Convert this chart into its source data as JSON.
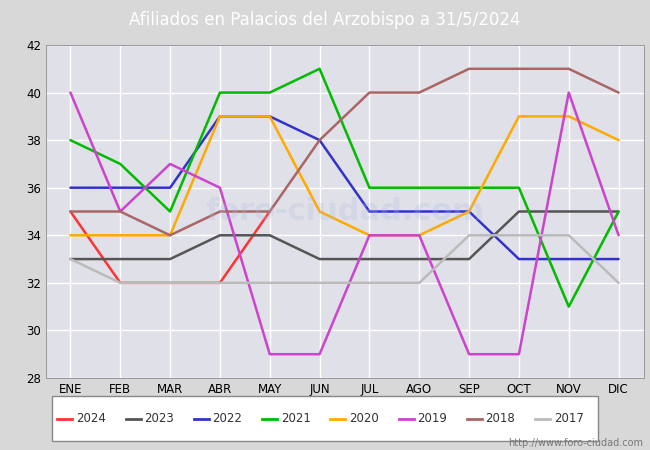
{
  "title": "Afiliados en Palacios del Arzobispo a 31/5/2024",
  "months": [
    "ENE",
    "FEB",
    "MAR",
    "ABR",
    "MAY",
    "JUN",
    "JUL",
    "AGO",
    "SEP",
    "OCT",
    "NOV",
    "DIC"
  ],
  "ylim": [
    28,
    42
  ],
  "yticks": [
    28,
    30,
    32,
    34,
    36,
    38,
    40,
    42
  ],
  "series": {
    "2024": {
      "color": "#ff3333",
      "values": [
        35,
        32,
        32,
        32,
        35,
        null,
        null,
        null,
        null,
        null,
        null,
        null
      ]
    },
    "2023": {
      "color": "#555555",
      "values": [
        33,
        33,
        33,
        34,
        34,
        33,
        33,
        33,
        33,
        35,
        35,
        35
      ]
    },
    "2022": {
      "color": "#3333cc",
      "values": [
        36,
        36,
        36,
        39,
        39,
        38,
        35,
        35,
        35,
        33,
        33,
        33
      ]
    },
    "2021": {
      "color": "#00bb00",
      "values": [
        38,
        37,
        35,
        40,
        40,
        41,
        36,
        36,
        36,
        36,
        31,
        35
      ]
    },
    "2020": {
      "color": "#ffaa00",
      "values": [
        34,
        34,
        34,
        39,
        39,
        35,
        34,
        34,
        35,
        39,
        39,
        38
      ]
    },
    "2019": {
      "color": "#cc44cc",
      "values": [
        40,
        35,
        37,
        36,
        29,
        29,
        34,
        34,
        29,
        29,
        40,
        34
      ]
    },
    "2018": {
      "color": "#aa6666",
      "values": [
        35,
        35,
        34,
        35,
        35,
        38,
        40,
        40,
        41,
        41,
        41,
        40
      ]
    },
    "2017": {
      "color": "#bbbbbb",
      "values": [
        33,
        32,
        32,
        32,
        32,
        32,
        32,
        32,
        34,
        34,
        34,
        32
      ]
    }
  },
  "legend_order": [
    "2024",
    "2023",
    "2022",
    "2021",
    "2020",
    "2019",
    "2018",
    "2017"
  ],
  "url": "http://www.foro-ciudad.com",
  "bg_color": "#d8d8d8",
  "plot_bg": "#e0e0e8",
  "grid_color": "white",
  "title_bg": "#5577bb",
  "title_fontsize": 12,
  "watermark_text": "foro-ciudad.com",
  "watermark_color": "#aabbdd",
  "watermark_alpha": 0.25,
  "watermark_fontsize": 22
}
